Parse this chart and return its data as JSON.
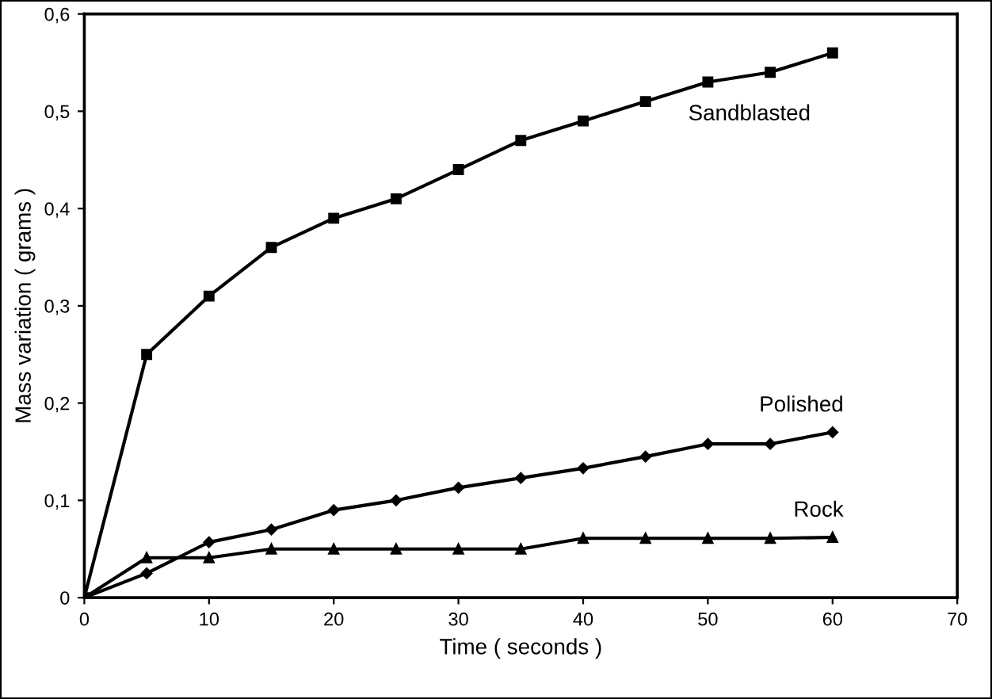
{
  "chart_data": {
    "type": "line",
    "xlabel": "Time ( seconds )",
    "ylabel": "Mass variation ( grams )",
    "x": [
      0,
      5,
      10,
      15,
      20,
      25,
      30,
      35,
      40,
      45,
      50,
      55,
      60
    ],
    "series": [
      {
        "name": "Sandblasted",
        "color": "#000000",
        "marker": "square",
        "values": [
          0,
          0.25,
          0.31,
          0.36,
          0.39,
          0.41,
          0.44,
          0.47,
          0.49,
          0.51,
          0.53,
          0.54,
          0.56
        ]
      },
      {
        "name": "Polished",
        "color": "#000000",
        "marker": "diamond",
        "values": [
          0,
          0.025,
          0.057,
          0.07,
          0.09,
          0.1,
          0.113,
          0.123,
          0.133,
          0.145,
          0.158,
          0.158,
          0.17
        ]
      },
      {
        "name": "Rock",
        "color": "#000000",
        "marker": "triangle",
        "values": [
          0,
          0.041,
          0.041,
          0.05,
          0.05,
          0.05,
          0.05,
          0.05,
          0.061,
          0.061,
          0.061,
          0.061,
          0.062
        ]
      }
    ],
    "xlim": [
      0,
      70
    ],
    "xticks": [
      0,
      10,
      20,
      30,
      40,
      50,
      60,
      70
    ],
    "ylim": [
      0,
      0.6
    ],
    "yticks": [
      0,
      {
        "value": 0.1,
        "label": "0,1"
      },
      {
        "value": 0.2,
        "label": "0,2"
      },
      {
        "value": 0.3,
        "label": "0,3"
      },
      {
        "value": 0.4,
        "label": "0,4"
      },
      {
        "value": 0.5,
        "label": "0,5"
      },
      {
        "value": 0.6,
        "label": "0,6"
      }
    ],
    "grid": false,
    "legend": false,
    "line_style": "solid"
  }
}
